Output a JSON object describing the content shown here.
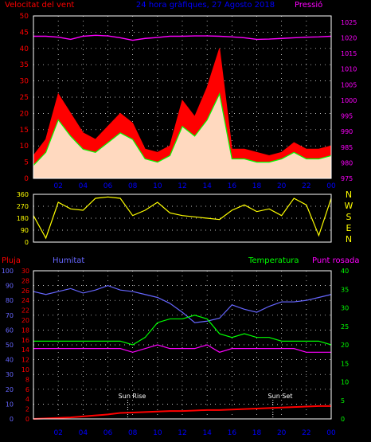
{
  "header": {
    "wind_label": "Velocitat del vent",
    "title": "24 hora gràfiques, 27 Agosto 2018",
    "pressure_label": "Pressió"
  },
  "bottom_header": {
    "rain_label": "Pluja",
    "humidity_label": "Humitat",
    "temperature_label": "Temperatura",
    "dewpoint_label": "Punt rosada"
  },
  "annotations": {
    "sunrise": "Sun Rise",
    "sunset": "Sun Set"
  },
  "colors": {
    "wind_gust": "#ff0000",
    "wind_avg": "#00ff00",
    "wind_fill": "#ffffe0",
    "pressure": "#ff00ff",
    "direction": "#ffff00",
    "rain": "#ff0000",
    "humidity": "#6666ff",
    "temperature": "#00ff00",
    "dewpoint": "#ff00ff",
    "grid": "#ffffff",
    "title": "#0000ff"
  },
  "chart_data": [
    {
      "type": "line",
      "x_tick_labels": [
        "02",
        "04",
        "06",
        "08",
        "10",
        "12",
        "14",
        "16",
        "18",
        "20",
        "22",
        "00"
      ],
      "y_left_ticks": [
        0,
        5,
        10,
        15,
        20,
        25,
        30,
        35,
        40,
        45,
        50
      ],
      "y_left_range": [
        0,
        50
      ],
      "y_right_ticks": [
        975,
        980,
        985,
        990,
        995,
        1000,
        1005,
        1010,
        1015,
        1020,
        1025
      ],
      "y_right_range": [
        975,
        1027
      ],
      "x_hours": [
        0,
        1,
        2,
        3,
        4,
        5,
        6,
        7,
        8,
        9,
        10,
        11,
        12,
        13,
        14,
        15,
        16,
        17,
        18,
        19,
        20,
        21,
        22,
        23,
        24
      ],
      "series": [
        {
          "role": "gust",
          "values": [
            7,
            12,
            26,
            20,
            14,
            12,
            16,
            20,
            17,
            9,
            8,
            10,
            24,
            19,
            28,
            40,
            9,
            9,
            8,
            7,
            8,
            11,
            9,
            9,
            10
          ]
        },
        {
          "role": "average",
          "values": [
            4,
            8,
            18,
            13,
            9,
            8,
            11,
            14,
            12,
            6,
            5,
            7,
            16,
            13,
            18,
            26,
            6,
            6,
            5,
            5,
            6,
            8,
            6,
            6,
            7
          ]
        },
        {
          "role": "pressure",
          "values": [
            1020.5,
            1020.5,
            1020.2,
            1019.5,
            1020.5,
            1020.8,
            1020.6,
            1020.0,
            1019.2,
            1019.8,
            1020.1,
            1020.5,
            1020.5,
            1020.6,
            1020.6,
            1020.5,
            1020.3,
            1020.0,
            1019.5,
            1019.6,
            1019.8,
            1020.0,
            1020.2,
            1020.3,
            1020.5
          ]
        }
      ]
    },
    {
      "type": "line",
      "y_left_ticks": [
        0,
        90,
        180,
        270,
        360
      ],
      "y_right_ticks": [
        "N",
        "W",
        "S",
        "E",
        "N"
      ],
      "x_hours": [
        0,
        1,
        2,
        3,
        4,
        5,
        6,
        7,
        8,
        9,
        10,
        11,
        12,
        13,
        14,
        15,
        16,
        17,
        18,
        19,
        20,
        21,
        22,
        23,
        24
      ],
      "series": [
        {
          "role": "direction",
          "values": [
            200,
            30,
            300,
            250,
            240,
            330,
            340,
            330,
            200,
            240,
            300,
            220,
            200,
            190,
            180,
            170,
            240,
            280,
            230,
            250,
            200,
            330,
            280,
            50,
            330
          ]
        }
      ]
    },
    {
      "type": "line",
      "y_left_ticks": [
        0,
        10,
        20,
        30,
        40,
        50,
        60,
        70,
        80,
        90,
        100
      ],
      "y_rain_ticks": [
        0,
        2,
        4,
        6,
        8,
        10,
        12,
        14,
        16,
        18,
        20,
        22,
        24,
        26,
        28,
        30
      ],
      "y_right_ticks": [
        0,
        5,
        10,
        15,
        20,
        25,
        30,
        35,
        40
      ],
      "x_tick_labels": [
        "02",
        "04",
        "06",
        "08",
        "10",
        "12",
        "14",
        "16",
        "18",
        "20",
        "22",
        "00"
      ],
      "x_hours": [
        0,
        1,
        2,
        3,
        4,
        5,
        6,
        7,
        8,
        9,
        10,
        11,
        12,
        13,
        14,
        15,
        16,
        17,
        18,
        19,
        20,
        21,
        22,
        23,
        24
      ],
      "series": [
        {
          "role": "humidity",
          "values": [
            86,
            84,
            86,
            88,
            85,
            87,
            90,
            87,
            86,
            84,
            82,
            78,
            72,
            65,
            66,
            68,
            77,
            74,
            72,
            76,
            79,
            79,
            80,
            82,
            84
          ]
        },
        {
          "role": "temperature",
          "values": [
            21,
            21,
            21,
            21,
            21,
            21,
            21,
            21,
            20,
            22,
            26,
            27,
            27,
            28,
            27,
            23,
            22,
            23,
            22,
            22,
            21,
            21,
            21,
            21,
            20
          ]
        },
        {
          "role": "dewpoint",
          "values": [
            19,
            19,
            19,
            19,
            19,
            19,
            19,
            19,
            18,
            19,
            20,
            19,
            19,
            19,
            20,
            18,
            19,
            19,
            19,
            19,
            19,
            19,
            18,
            18,
            18
          ]
        },
        {
          "role": "rain",
          "values": [
            0,
            0.1,
            0.2,
            0.3,
            0.5,
            0.7,
            0.9,
            1.2,
            1.3,
            1.4,
            1.5,
            1.6,
            1.6,
            1.7,
            1.8,
            1.8,
            1.9,
            2.0,
            2.1,
            2.2,
            2.3,
            2.4,
            2.5,
            2.6,
            2.6
          ]
        }
      ]
    }
  ]
}
